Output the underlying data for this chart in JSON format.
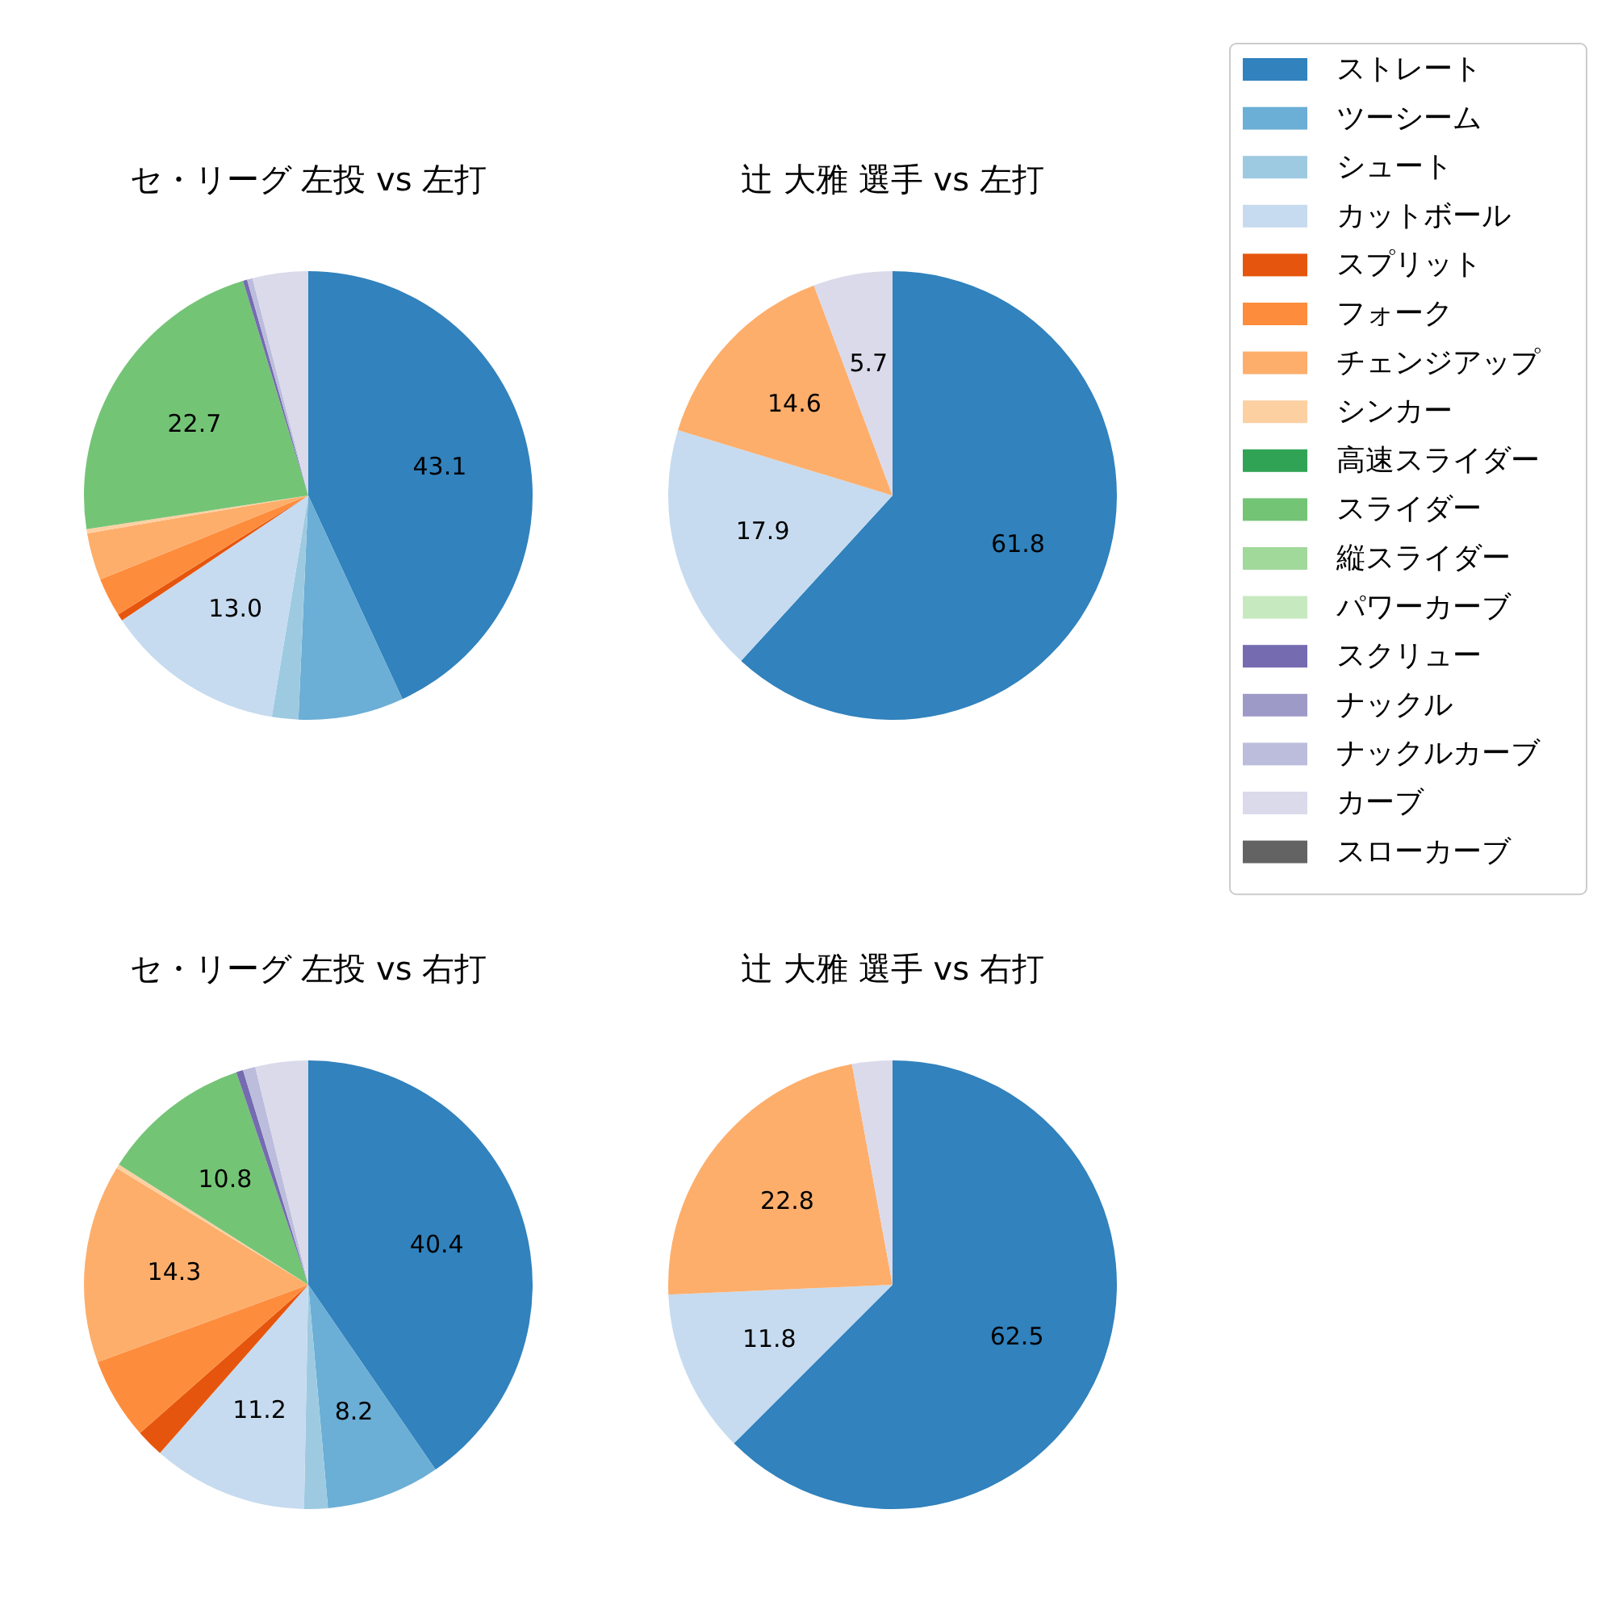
{
  "chart_data": [
    {
      "type": "pie",
      "title": "セ・リーグ 左投 vs 左打",
      "categories": [
        "ストレート",
        "ツーシーム",
        "シュート",
        "カットボール",
        "スプリット",
        "フォーク",
        "チェンジアップ",
        "シンカー",
        "高速スライダー",
        "スライダー",
        "縦スライダー",
        "パワーカーブ",
        "スクリュー",
        "ナックル",
        "ナックルカーブ",
        "カーブ",
        "スローカーブ"
      ],
      "values": [
        43.1,
        7.6,
        1.9,
        13.0,
        0.5,
        2.8,
        3.4,
        0.3,
        0,
        22.7,
        0,
        0,
        0.3,
        0,
        0.4,
        4.0,
        0
      ],
      "value_labels": [
        "43.1",
        null,
        null,
        "13.0",
        null,
        null,
        null,
        null,
        null,
        "22.7",
        null,
        null,
        null,
        null,
        null,
        null,
        null
      ],
      "colors": [
        "#3182bd",
        "#6baed6",
        "#9ecae1",
        "#c6dbef",
        "#e6550d",
        "#fd8d3c",
        "#fdae6b",
        "#fdd0a2",
        "#31a354",
        "#74c476",
        "#a1d99b",
        "#c7e9c0",
        "#756bb1",
        "#9e9ac8",
        "#bcbddc",
        "#dadaeb",
        "#636363"
      ],
      "legend": "right"
    },
    {
      "type": "pie",
      "title": "辻 大雅 選手 vs 左打",
      "categories": [
        null,
        null,
        null,
        null,
        null,
        null,
        null,
        null,
        null,
        null,
        null,
        null,
        null,
        null,
        null,
        null,
        null
      ],
      "values": [
        61.8,
        0,
        0,
        17.9,
        0,
        0,
        14.6,
        0,
        0,
        0,
        0,
        0,
        0,
        0,
        0,
        5.7,
        0
      ],
      "value_labels": [
        "61.8",
        null,
        null,
        "17.9",
        null,
        null,
        "14.6",
        null,
        null,
        null,
        null,
        null,
        null,
        null,
        null,
        "5.7",
        null
      ],
      "colors": [
        "#3182bd",
        "#6baed6",
        "#9ecae1",
        "#c6dbef",
        "#e6550d",
        "#fd8d3c",
        "#fdae6b",
        "#fdd0a2",
        "#31a354",
        "#74c476",
        "#a1d99b",
        "#c7e9c0",
        "#756bb1",
        "#9e9ac8",
        "#bcbddc",
        "#dadaeb",
        "#636363"
      ]
    },
    {
      "type": "pie",
      "title": "セ・リーグ 左投 vs 右打",
      "categories": [
        null,
        null,
        null,
        null,
        null,
        null,
        null,
        null,
        null,
        null,
        null,
        null,
        null,
        null,
        null,
        null,
        null
      ],
      "values": [
        40.4,
        8.2,
        1.7,
        11.2,
        2.0,
        5.9,
        14.3,
        0.3,
        0,
        10.8,
        0,
        0,
        0.5,
        0,
        0.9,
        3.8,
        0
      ],
      "value_labels": [
        "40.4",
        "8.2",
        null,
        "11.2",
        null,
        null,
        "14.3",
        null,
        null,
        "10.8",
        null,
        null,
        null,
        null,
        null,
        null,
        null
      ],
      "colors": [
        "#3182bd",
        "#6baed6",
        "#9ecae1",
        "#c6dbef",
        "#e6550d",
        "#fd8d3c",
        "#fdae6b",
        "#fdd0a2",
        "#31a354",
        "#74c476",
        "#a1d99b",
        "#c7e9c0",
        "#756bb1",
        "#9e9ac8",
        "#bcbddc",
        "#dadaeb",
        "#636363"
      ]
    },
    {
      "type": "pie",
      "title": "辻 大雅 選手 vs 右打",
      "categories": [
        null,
        null,
        null,
        null,
        null,
        null,
        null,
        null,
        null,
        null,
        null,
        null,
        null,
        null,
        null,
        null,
        null
      ],
      "values": [
        62.5,
        0,
        0,
        11.8,
        0,
        0,
        22.8,
        0,
        0,
        0,
        0,
        0,
        0,
        0,
        0,
        2.9,
        0
      ],
      "value_labels": [
        "62.5",
        null,
        null,
        "11.8",
        null,
        null,
        "22.8",
        null,
        null,
        null,
        null,
        null,
        null,
        null,
        null,
        null,
        null
      ],
      "colors": [
        "#3182bd",
        "#6baed6",
        "#9ecae1",
        "#c6dbef",
        "#e6550d",
        "#fd8d3c",
        "#fdae6b",
        "#fdd0a2",
        "#31a354",
        "#74c476",
        "#a1d99b",
        "#c7e9c0",
        "#756bb1",
        "#9e9ac8",
        "#bcbddc",
        "#dadaeb",
        "#636363"
      ]
    }
  ]
}
